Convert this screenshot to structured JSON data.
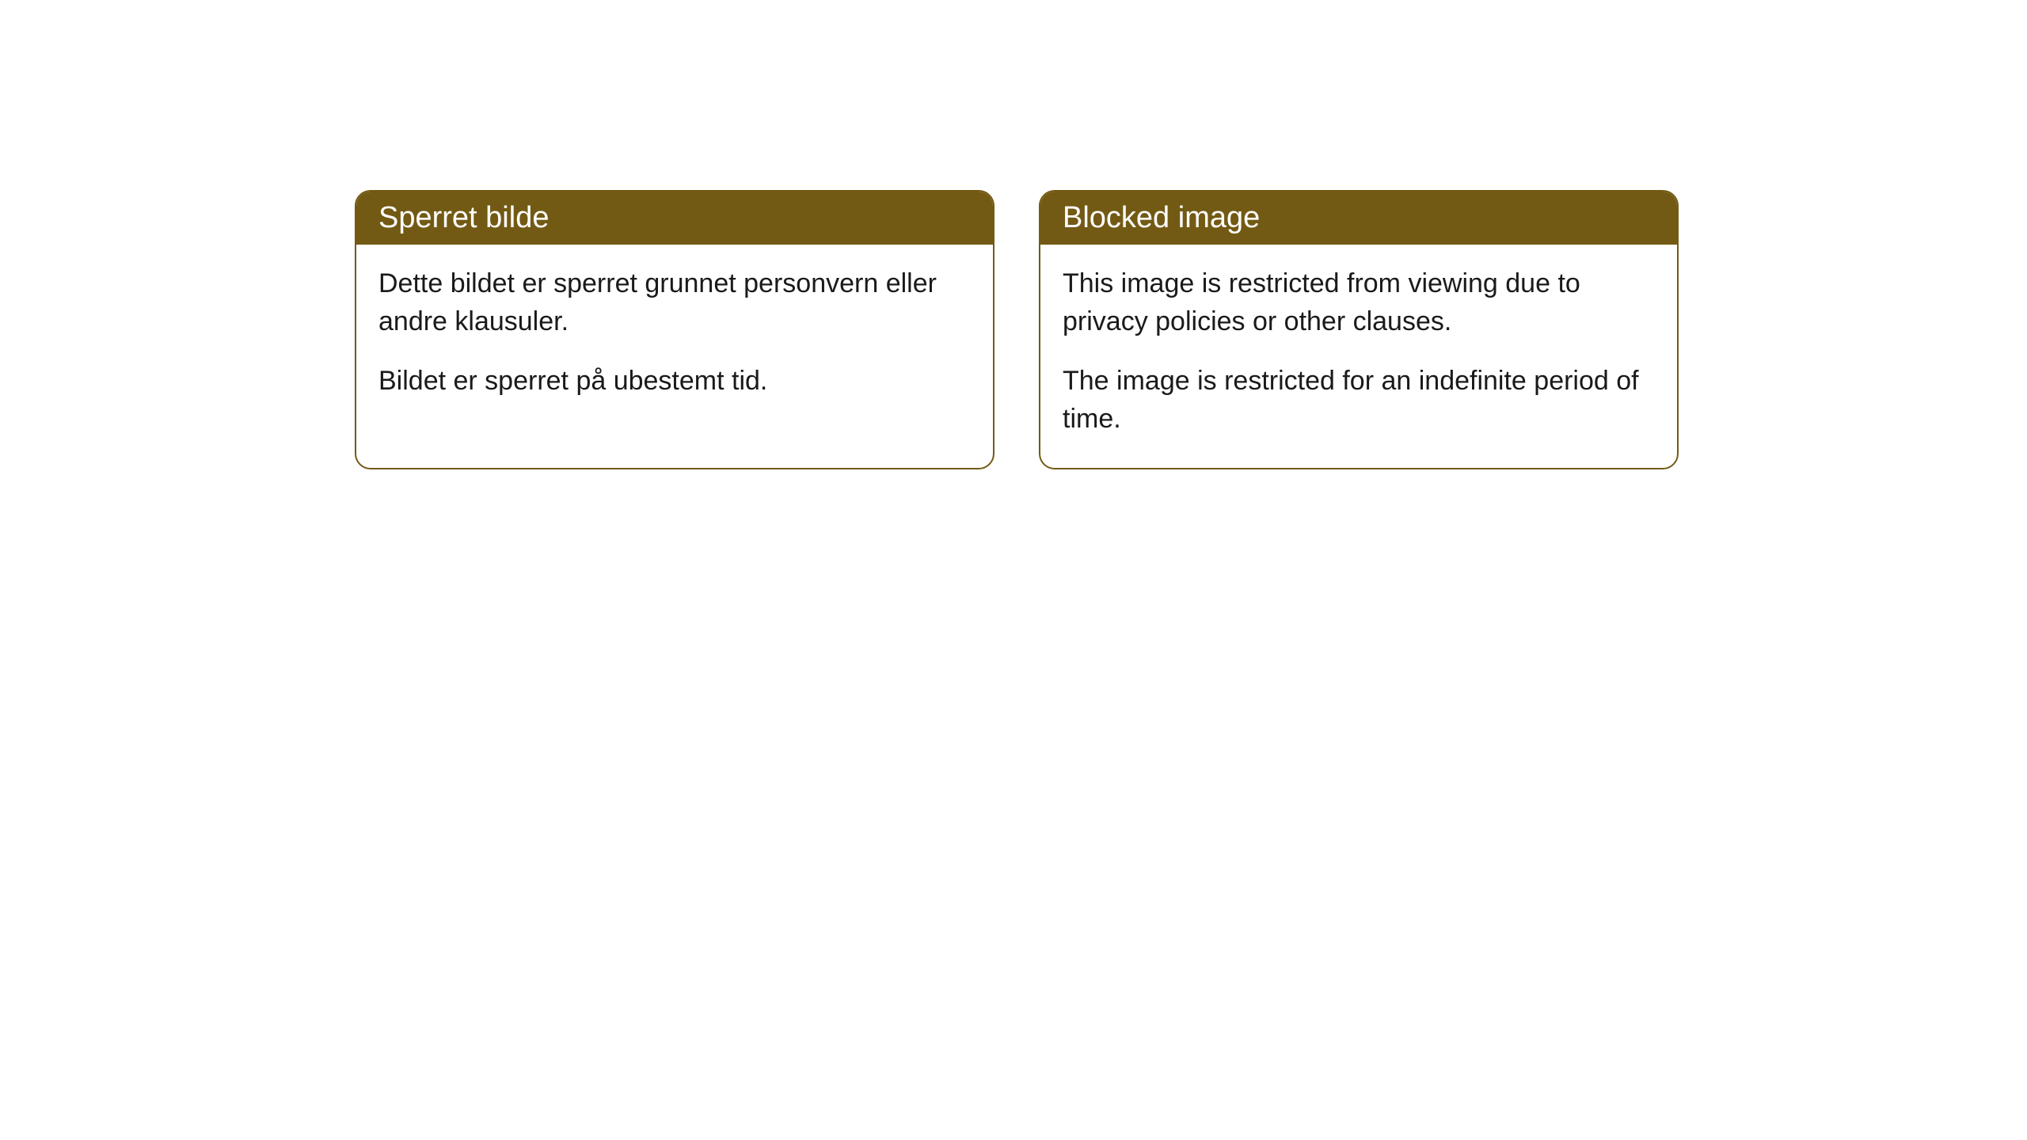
{
  "cards": [
    {
      "title": "Sperret bilde",
      "paragraph1": "Dette bildet er sperret grunnet personvern eller andre klausuler.",
      "paragraph2": "Bildet er sperret på ubestemt tid."
    },
    {
      "title": "Blocked image",
      "paragraph1": "This image is restricted from viewing due to privacy policies or other clauses.",
      "paragraph2": "The image is restricted for an indefinite period of time."
    }
  ],
  "styles": {
    "header_background": "#735a14",
    "header_text_color": "#ffffff",
    "border_color": "#735a14",
    "body_text_color": "#1a1a1a",
    "card_background": "#ffffff",
    "page_background": "#ffffff",
    "border_radius": 20,
    "header_fontsize": 38,
    "body_fontsize": 34
  }
}
